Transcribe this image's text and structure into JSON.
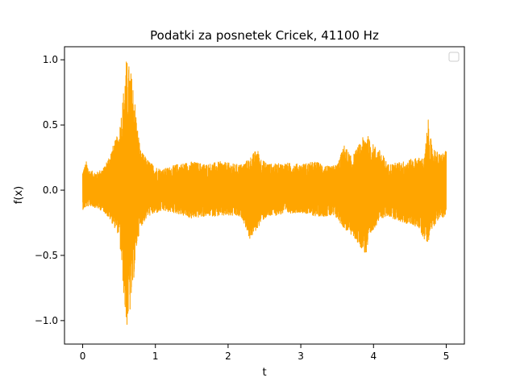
{
  "chart_data": {
    "type": "line",
    "title": "Podatki za posnetek Cricek, 41100 Hz",
    "xlabel": "t",
    "ylabel": "f(x)",
    "xlim": [
      -0.25,
      5.25
    ],
    "ylim": [
      -1.18,
      1.1
    ],
    "xticks": [
      0,
      1,
      2,
      3,
      4,
      5
    ],
    "xtick_labels": [
      "0",
      "1",
      "2",
      "3",
      "4",
      "5"
    ],
    "yticks": [
      -1.0,
      -0.5,
      0.0,
      0.5,
      1.0
    ],
    "ytick_labels": [
      "−1.0",
      "−0.5",
      "0.0",
      "0.5",
      "1.0"
    ],
    "grid": false,
    "legend": {
      "placement": "upper-right",
      "entries": []
    },
    "series": [
      {
        "color": "#ffa500",
        "x_range": [
          0,
          5
        ],
        "envelope": {
          "t": [
            0.0,
            0.05,
            0.1,
            0.2,
            0.3,
            0.4,
            0.5,
            0.55,
            0.6,
            0.65,
            0.7,
            0.75,
            0.8,
            0.9,
            1.0,
            1.1,
            1.3,
            1.5,
            1.7,
            1.9,
            2.1,
            2.2,
            2.3,
            2.4,
            2.45,
            2.5,
            2.6,
            2.8,
            3.0,
            3.2,
            3.4,
            3.5,
            3.6,
            3.7,
            3.8,
            3.9,
            3.95,
            4.0,
            4.1,
            4.2,
            4.4,
            4.6,
            4.7,
            4.75,
            4.8,
            4.9,
            5.0
          ],
          "upper": [
            0.15,
            0.22,
            0.15,
            0.14,
            0.18,
            0.32,
            0.45,
            0.7,
            1.0,
            0.95,
            0.8,
            0.5,
            0.3,
            0.23,
            0.18,
            0.16,
            0.2,
            0.22,
            0.2,
            0.22,
            0.2,
            0.2,
            0.25,
            0.32,
            0.25,
            0.22,
            0.2,
            0.21,
            0.2,
            0.22,
            0.18,
            0.2,
            0.35,
            0.25,
            0.35,
            0.45,
            0.38,
            0.35,
            0.3,
            0.2,
            0.22,
            0.25,
            0.25,
            0.55,
            0.35,
            0.28,
            0.3
          ],
          "lower": [
            -0.15,
            -0.13,
            -0.12,
            -0.14,
            -0.17,
            -0.25,
            -0.35,
            -0.68,
            -1.07,
            -0.95,
            -0.7,
            -0.4,
            -0.28,
            -0.2,
            -0.18,
            -0.16,
            -0.18,
            -0.22,
            -0.2,
            -0.2,
            -0.2,
            -0.22,
            -0.38,
            -0.3,
            -0.25,
            -0.22,
            -0.2,
            -0.18,
            -0.17,
            -0.2,
            -0.2,
            -0.22,
            -0.3,
            -0.35,
            -0.42,
            -0.5,
            -0.4,
            -0.3,
            -0.22,
            -0.2,
            -0.25,
            -0.28,
            -0.38,
            -0.4,
            -0.3,
            -0.22,
            -0.2
          ]
        }
      }
    ]
  }
}
